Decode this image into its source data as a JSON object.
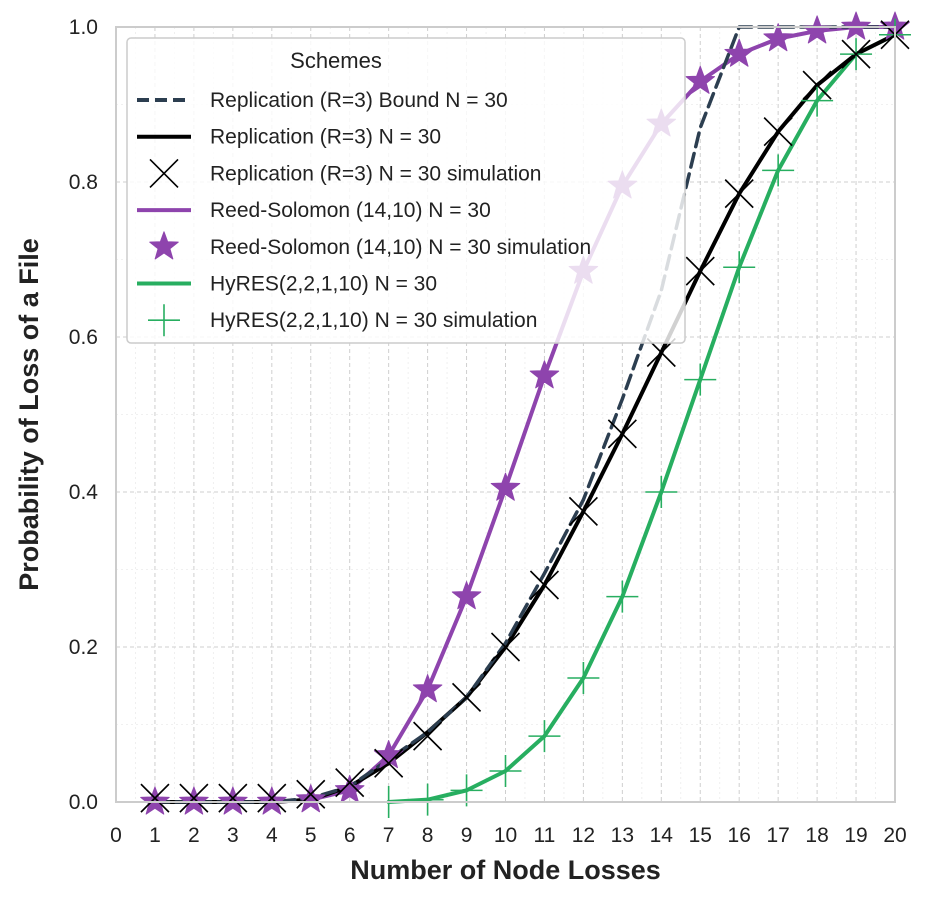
{
  "chart_data": {
    "type": "line",
    "title": "",
    "xlabel": "Number of Node Losses",
    "ylabel": "Probability of Loss of a File",
    "xlim": [
      0,
      20
    ],
    "ylim": [
      0,
      1
    ],
    "x_ticks": [
      0,
      1,
      2,
      3,
      4,
      5,
      6,
      7,
      8,
      9,
      10,
      11,
      12,
      13,
      14,
      15,
      16,
      17,
      18,
      19,
      20
    ],
    "y_ticks": [
      0.0,
      0.2,
      0.4,
      0.6,
      0.8,
      1.0
    ],
    "y_tick_labels": [
      "0.0",
      "0.2",
      "0.4",
      "0.6",
      "0.8",
      "1.0"
    ],
    "grid": true,
    "legend": {
      "title": "Schemes",
      "placement": "top-left"
    },
    "series": [
      {
        "name": "Replication (R=3) Bound N = 30",
        "style": "dashed",
        "color": "#2c3e50",
        "x": [
          1,
          2,
          3,
          4,
          5,
          6,
          7,
          8,
          9,
          10,
          11,
          12,
          13,
          14,
          15,
          16,
          17,
          18,
          19,
          20
        ],
        "y": [
          0,
          0,
          0,
          0,
          0.005,
          0.02,
          0.055,
          0.09,
          0.135,
          0.205,
          0.295,
          0.39,
          0.52,
          0.66,
          0.87,
          1.0,
          1.0,
          1.0,
          1.0,
          1.0
        ]
      },
      {
        "name": "Replication (R=3) N = 30",
        "style": "solid",
        "color": "#000000",
        "x": [
          1,
          2,
          3,
          4,
          5,
          6,
          7,
          8,
          9,
          10,
          11,
          12,
          13,
          14,
          15,
          16,
          17,
          18,
          19,
          20
        ],
        "y": [
          0,
          0,
          0,
          0,
          0.003,
          0.02,
          0.05,
          0.09,
          0.135,
          0.2,
          0.28,
          0.375,
          0.475,
          0.58,
          0.685,
          0.785,
          0.865,
          0.925,
          0.965,
          0.99
        ]
      },
      {
        "name": "Replication (R=3) N = 30 simulation",
        "style": "marker-x",
        "color": "#000000",
        "x": [
          1,
          2,
          3,
          4,
          5,
          6,
          7,
          8,
          9,
          10,
          11,
          12,
          13,
          14,
          15,
          16,
          17,
          18,
          19,
          20
        ],
        "y": [
          0.005,
          0.005,
          0.005,
          0.005,
          0.01,
          0.025,
          0.05,
          0.085,
          0.135,
          0.2,
          0.28,
          0.375,
          0.475,
          0.58,
          0.685,
          0.785,
          0.865,
          0.925,
          0.965,
          0.99
        ]
      },
      {
        "name": "Reed-Solomon (14,10) N = 30",
        "style": "solid",
        "color": "#8e44ad",
        "x": [
          1,
          2,
          3,
          4,
          5,
          6,
          7,
          8,
          9,
          10,
          11,
          12,
          13,
          14,
          15,
          16,
          17,
          18,
          19,
          20
        ],
        "y": [
          0,
          0,
          0,
          0,
          0.003,
          0.015,
          0.06,
          0.145,
          0.265,
          0.405,
          0.55,
          0.685,
          0.795,
          0.875,
          0.93,
          0.965,
          0.985,
          0.995,
          1.0,
          1.0
        ]
      },
      {
        "name": "Reed-Solomon (14,10) N = 30 simulation",
        "style": "marker-star",
        "color": "#8e44ad",
        "x": [
          1,
          2,
          3,
          4,
          5,
          6,
          7,
          8,
          9,
          10,
          11,
          12,
          13,
          14,
          15,
          16,
          17,
          18,
          19,
          20
        ],
        "y": [
          0,
          0,
          0,
          0,
          0.003,
          0.015,
          0.06,
          0.145,
          0.265,
          0.405,
          0.55,
          0.685,
          0.795,
          0.875,
          0.93,
          0.965,
          0.985,
          0.995,
          1.0,
          1.0
        ]
      },
      {
        "name": "HyRES(2,2,1,10) N = 30",
        "style": "solid",
        "color": "#27ae60",
        "x": [
          7,
          8,
          9,
          10,
          11,
          12,
          13,
          14,
          15,
          16,
          17,
          18,
          19,
          20
        ],
        "y": [
          0,
          0.003,
          0.015,
          0.04,
          0.085,
          0.16,
          0.265,
          0.4,
          0.545,
          0.69,
          0.815,
          0.905,
          0.965,
          0.99
        ]
      },
      {
        "name": "HyRES(2,2,1,10) N = 30 simulation",
        "style": "marker-plus",
        "color": "#27ae60",
        "x": [
          7,
          8,
          9,
          10,
          11,
          12,
          13,
          14,
          15,
          16,
          17,
          18,
          19,
          20
        ],
        "y": [
          0,
          0.003,
          0.015,
          0.04,
          0.085,
          0.16,
          0.265,
          0.4,
          0.545,
          0.69,
          0.815,
          0.905,
          0.965,
          0.99
        ]
      }
    ]
  }
}
